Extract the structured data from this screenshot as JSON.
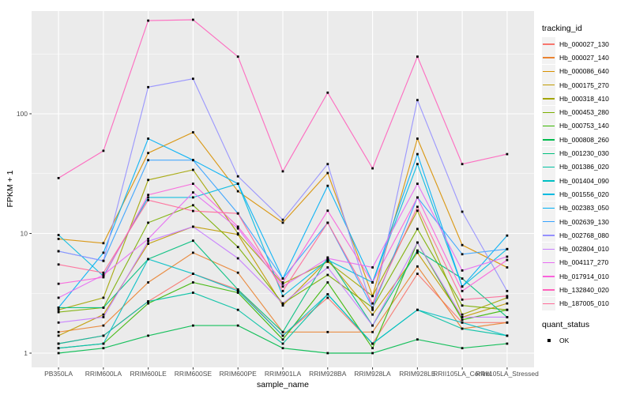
{
  "chart_data": {
    "type": "line",
    "title": "",
    "xlabel": "sample_name",
    "ylabel": "FPKM + 1",
    "y_scale": "log10",
    "y_tick_labels": [
      "1",
      "10",
      "100"
    ],
    "y_tick_values": [
      1,
      10,
      100
    ],
    "ylim": [
      0.76,
      720
    ],
    "grid": "on",
    "panel_bg": "#EBEBEB",
    "grid_color": "#FFFFFF",
    "tick_color": "#333333",
    "tick_label_color": "#4D4D4D",
    "point_color": "#000000",
    "legend_title": "tracking_id",
    "legend_position": "right",
    "quant_legend": {
      "title": "quant_status",
      "items": [
        "OK"
      ]
    },
    "categories": [
      "PB350LA",
      "RRIM600LA",
      "RRIM600LE",
      "RRIM600SE",
      "RRIM600PE",
      "RRIM901LA",
      "RRIM928BA",
      "RRIM928LA",
      "RRIM928LE",
      "RRII105LA_Control",
      "RRII105LA_Stressed"
    ],
    "series": [
      {
        "name": "Hb_000027_130",
        "color": "#F8766D",
        "values": [
          1.2,
          1.4,
          2.7,
          4.6,
          3.4,
          1.4,
          2.9,
          1.2,
          4.6,
          1.8,
          1.8
        ]
      },
      {
        "name": "Hb_000027_140",
        "color": "#EA8331",
        "values": [
          1.5,
          1.7,
          3.9,
          6.9,
          4.7,
          1.5,
          1.5,
          1.5,
          5.3,
          1.6,
          1.8
        ]
      },
      {
        "name": "Hb_000086_640",
        "color": "#D89000",
        "values": [
          9.0,
          8.3,
          47,
          70,
          22.5,
          12.3,
          32,
          3.0,
          62,
          8.0,
          5.2
        ]
      },
      {
        "name": "Hb_000175_270",
        "color": "#C09B00",
        "values": [
          1.4,
          2.1,
          8.2,
          11.4,
          9.8,
          2.5,
          6.0,
          2.1,
          6.9,
          2.0,
          2.6
        ]
      },
      {
        "name": "Hb_000318_410",
        "color": "#A3A500",
        "values": [
          2.3,
          2.9,
          28,
          34,
          10,
          3.8,
          5.8,
          3.0,
          15.5,
          2.1,
          2.9
        ]
      },
      {
        "name": "Hb_000453_280",
        "color": "#7CAE00",
        "values": [
          2.2,
          2.4,
          12.3,
          17.2,
          7.7,
          2.6,
          4.5,
          2.4,
          10.9,
          2.5,
          2.3
        ]
      },
      {
        "name": "Hb_000753_140",
        "color": "#39B600",
        "values": [
          1.1,
          1.2,
          2.6,
          3.9,
          3.2,
          1.3,
          3.9,
          1.1,
          8.4,
          1.9,
          2.3
        ]
      },
      {
        "name": "Hb_000808_260",
        "color": "#00BB4E",
        "values": [
          1.0,
          1.1,
          1.4,
          1.7,
          1.7,
          1.1,
          1.0,
          1.0,
          1.3,
          1.1,
          1.2
        ]
      },
      {
        "name": "Hb_001230_030",
        "color": "#00BF7D",
        "values": [
          2.4,
          2.4,
          6.1,
          8.7,
          3.4,
          1.5,
          6.3,
          1.7,
          7.2,
          4.2,
          2.0
        ]
      },
      {
        "name": "Hb_001386_020",
        "color": "#00C1A3",
        "values": [
          1.2,
          1.4,
          2.7,
          3.2,
          2.3,
          1.2,
          3.1,
          1.2,
          2.3,
          1.6,
          1.4
        ]
      },
      {
        "name": "Hb_001404_090",
        "color": "#00BFC4",
        "values": [
          1.1,
          1.2,
          6.1,
          4.6,
          3.3,
          1.4,
          3.1,
          1.2,
          2.3,
          1.8,
          1.4
        ]
      },
      {
        "name": "Hb_001556_020",
        "color": "#00BAE0",
        "values": [
          9.7,
          4.4,
          20,
          20,
          26,
          3.0,
          6.0,
          3.9,
          38,
          3.6,
          7.4
        ]
      },
      {
        "name": "Hb_002383_050",
        "color": "#00B0F6",
        "values": [
          2.4,
          6.9,
          62,
          41,
          26,
          4.2,
          25,
          3.9,
          46,
          3.6,
          9.6
        ]
      },
      {
        "name": "Hb_002639_130",
        "color": "#35A2FF",
        "values": [
          7.1,
          5.9,
          41,
          41,
          14.7,
          4.2,
          12.3,
          2.4,
          20,
          6.7,
          7.4
        ]
      },
      {
        "name": "Hb_002768_080",
        "color": "#9590FF",
        "values": [
          7.1,
          5.9,
          167,
          196,
          30,
          13,
          38,
          2.3,
          130,
          15.2,
          3.3
        ]
      },
      {
        "name": "Hb_002804_010",
        "color": "#C77CFF",
        "values": [
          1.8,
          2.0,
          8.6,
          11.4,
          6.2,
          2.6,
          5.2,
          1.7,
          8.4,
          2.0,
          2.0
        ]
      },
      {
        "name": "Hb_004117_270",
        "color": "#E76BF3",
        "values": [
          2.9,
          4.5,
          9.0,
          22,
          11.0,
          3.6,
          6.2,
          5.2,
          26,
          4.9,
          6.4
        ]
      },
      {
        "name": "Hb_017914_010",
        "color": "#FA62DB",
        "values": [
          3.8,
          4.3,
          21,
          26,
          11.4,
          3.9,
          15.5,
          3.9,
          20,
          3.3,
          6.0
        ]
      },
      {
        "name": "Hb_132840_020",
        "color": "#FF62BC",
        "values": [
          29,
          49,
          600,
          610,
          300,
          33,
          150,
          35,
          300,
          38,
          46
        ]
      },
      {
        "name": "Hb_187005_010",
        "color": "#FF6A98",
        "values": [
          5.5,
          4.7,
          19,
          15.4,
          14.7,
          3.3,
          12.3,
          2.6,
          16.7,
          2.8,
          3.0
        ]
      }
    ]
  }
}
